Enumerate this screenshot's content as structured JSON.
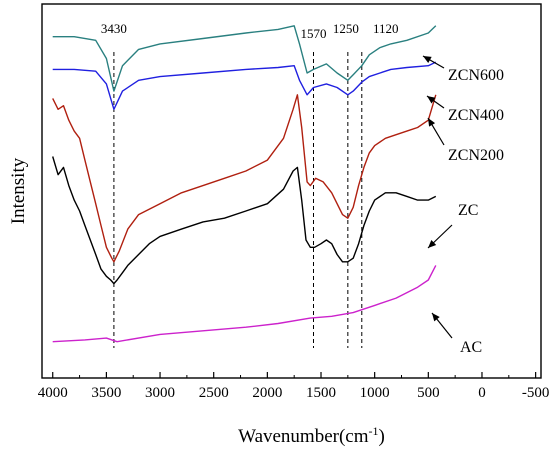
{
  "chart_data": {
    "type": "line",
    "title": "",
    "xlabel": "Wavenumber(cm",
    "xlabel_sup": "-1",
    "xlabel_suffix": ")",
    "ylabel": "Intensity",
    "xlim": [
      4100,
      -550
    ],
    "x_reversed": true,
    "y_ticks_shown": false,
    "grid": false,
    "x_ticks": [
      "4000",
      "3500",
      "3000",
      "2500",
      "2000",
      "1500",
      "1000",
      "500",
      "0",
      "-500"
    ],
    "x_tick_values": [
      4000,
      3500,
      3000,
      2500,
      2000,
      1500,
      1000,
      500,
      0,
      -500
    ],
    "reference_lines": [
      {
        "x": 3430,
        "label": "3430"
      },
      {
        "x": 1570,
        "label": "1570"
      },
      {
        "x": 1250,
        "label": "1250"
      },
      {
        "x": 1120,
        "label": "1120"
      }
    ],
    "series": [
      {
        "name": "ZCN600",
        "color": "#2a8080",
        "x": [
          4000,
          3800,
          3600,
          3500,
          3430,
          3350,
          3200,
          3000,
          2600,
          2200,
          1900,
          1750,
          1700,
          1630,
          1570,
          1450,
          1350,
          1250,
          1200,
          1120,
          1050,
          950,
          850,
          700,
          500,
          430
        ],
        "y": [
          88,
          88,
          87,
          82,
          73,
          80,
          84.5,
          86,
          87.5,
          89,
          90,
          91,
          86,
          78,
          79,
          80.5,
          78,
          76,
          77.5,
          80,
          83,
          85,
          86,
          87,
          89,
          91
        ]
      },
      {
        "name": "ZCN400",
        "color": "#2020e0",
        "x": [
          4000,
          3800,
          3600,
          3500,
          3430,
          3350,
          3200,
          3000,
          2600,
          2200,
          1900,
          1750,
          1700,
          1630,
          1570,
          1450,
          1350,
          1250,
          1200,
          1120,
          1050,
          950,
          850,
          700,
          500,
          430
        ],
        "y": [
          79,
          79,
          78.5,
          75,
          68,
          73,
          76,
          77,
          78,
          79,
          79.5,
          80,
          76,
          72,
          74,
          75,
          74,
          72,
          73,
          75.5,
          77,
          78,
          79,
          79.5,
          80,
          81
        ]
      },
      {
        "name": "ZCN200",
        "color": "#b02010",
        "x": [
          4000,
          3950,
          3900,
          3850,
          3800,
          3750,
          3700,
          3650,
          3600,
          3550,
          3500,
          3450,
          3430,
          3380,
          3300,
          3200,
          3000,
          2800,
          2600,
          2400,
          2200,
          2000,
          1850,
          1760,
          1720,
          1680,
          1630,
          1600,
          1550,
          1480,
          1400,
          1350,
          1300,
          1250,
          1200,
          1150,
          1100,
          1050,
          1000,
          900,
          800,
          700,
          600,
          500,
          430
        ],
        "y": [
          71,
          68,
          69,
          65,
          62,
          60,
          54,
          48,
          42,
          36,
          30,
          27,
          26,
          29,
          35,
          39,
          42,
          45,
          47,
          49,
          51,
          54,
          60,
          68,
          72,
          63,
          48,
          47,
          49,
          48,
          45,
          42,
          39,
          38,
          41,
          47,
          52,
          56,
          58,
          60,
          61,
          62,
          63,
          65,
          72
        ]
      },
      {
        "name": "ZC",
        "color": "#000000",
        "x": [
          4000,
          3950,
          3900,
          3850,
          3800,
          3750,
          3700,
          3650,
          3600,
          3550,
          3500,
          3460,
          3430,
          3400,
          3350,
          3300,
          3200,
          3100,
          3000,
          2800,
          2600,
          2400,
          2200,
          2000,
          1850,
          1760,
          1720,
          1680,
          1640,
          1600,
          1560,
          1500,
          1450,
          1400,
          1350,
          1300,
          1250,
          1200,
          1150,
          1100,
          1050,
          1000,
          900,
          800,
          700,
          600,
          500,
          430
        ],
        "y": [
          55,
          50,
          52,
          47,
          43,
          40,
          36,
          32,
          28,
          24,
          22,
          21,
          20,
          21,
          23,
          25,
          28,
          31,
          33,
          35,
          37,
          38,
          40,
          42,
          46,
          51,
          52,
          43,
          32,
          30,
          30,
          31,
          32,
          31,
          28,
          26,
          26,
          27,
          31,
          36,
          40,
          43,
          45,
          45,
          44,
          43,
          43,
          44
        ]
      },
      {
        "name": "AC",
        "color": "#cc22cc",
        "x": [
          4000,
          3700,
          3500,
          3400,
          3000,
          2600,
          2200,
          1900,
          1600,
          1400,
          1200,
          1000,
          800,
          600,
          500,
          430
        ],
        "y": [
          4,
          4.5,
          5,
          4,
          6,
          7,
          8,
          9,
          10.5,
          11,
          12,
          14,
          16,
          19,
          21,
          25
        ]
      }
    ]
  }
}
